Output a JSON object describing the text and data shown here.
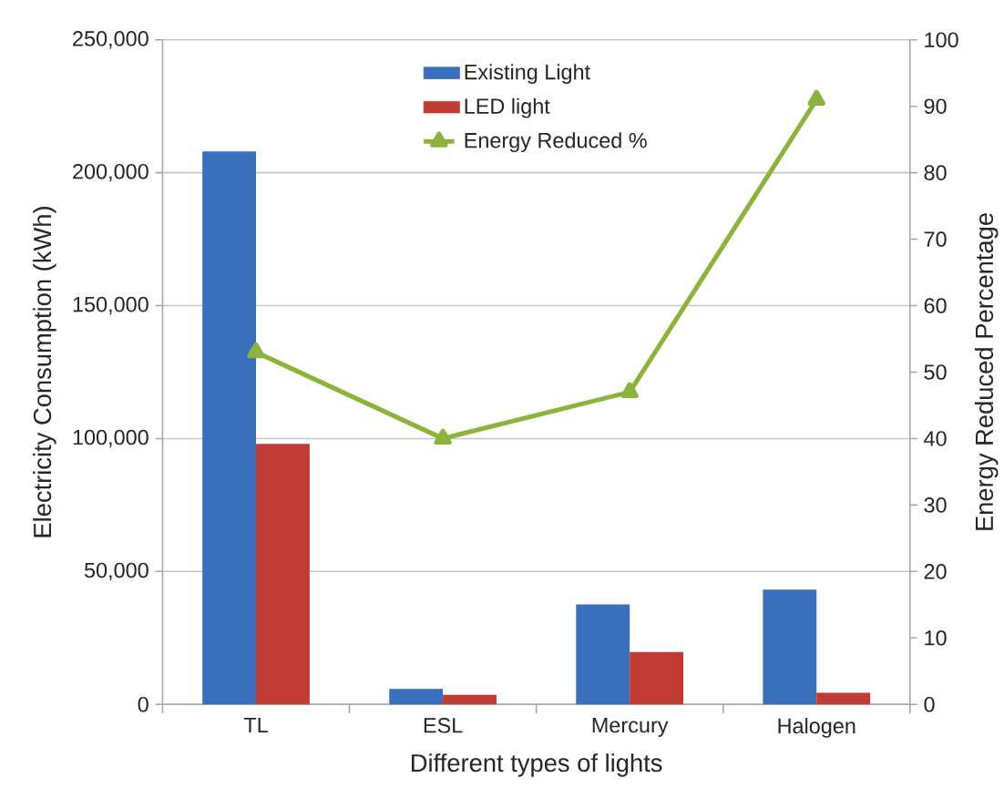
{
  "chart_data": {
    "type": "bar",
    "xlabel": "Different types of lights",
    "ylabel": "Electricity Consumption (kWh)",
    "y2label": "Energy Reduced Percentage",
    "categories": [
      "TL",
      "ESL",
      "Mercury",
      "Halogen"
    ],
    "series": [
      {
        "name": "Existing Light",
        "color": "#3a6fbd",
        "values": [
          208000,
          5800,
          37600,
          43200
        ]
      },
      {
        "name": "LED light",
        "color": "#c23b33",
        "values": [
          98000,
          3600,
          19700,
          4400
        ]
      },
      {
        "name": "Energy Reduced %",
        "type": "line",
        "axis": "y2",
        "color": "#8cb43c",
        "values": [
          53,
          40,
          47,
          91
        ]
      }
    ],
    "ylim": [
      0,
      250000
    ],
    "yticks": [
      {
        "value": 0,
        "label": "0"
      },
      {
        "value": 50000,
        "label": "50,000"
      },
      {
        "value": 100000,
        "label": "100,000"
      },
      {
        "value": 150000,
        "label": "150,000"
      },
      {
        "value": 200000,
        "label": "200,000"
      },
      {
        "value": 250000,
        "label": "250,000"
      }
    ],
    "y2lim": [
      0,
      100
    ],
    "y2ticks": [
      0,
      10,
      20,
      30,
      40,
      50,
      60,
      70,
      80,
      90,
      100
    ],
    "grid": "y",
    "legend": "top",
    "marker": "triangle",
    "line_style": "solid"
  }
}
